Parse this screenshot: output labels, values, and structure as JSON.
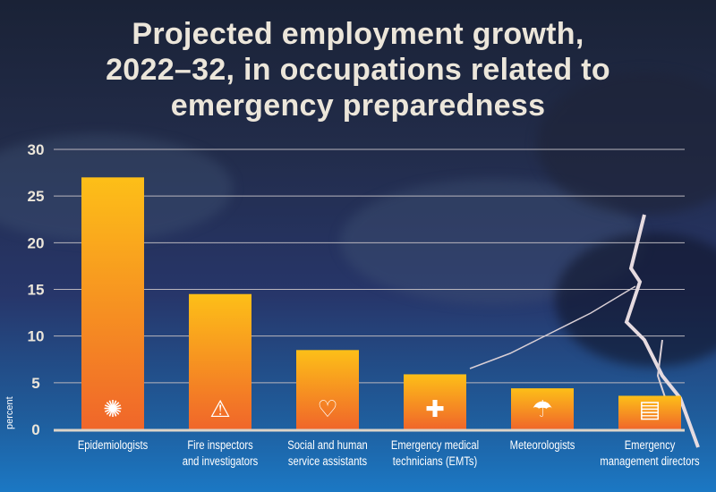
{
  "chart_data": {
    "type": "bar",
    "title": "Projected employment growth, 2022–32, in occupations related to emergency preparedness",
    "title_lines": [
      "Projected employment growth,",
      "2022–32, in occupations related to",
      "emergency preparedness"
    ],
    "ylabel": "percent",
    "xlabel": "",
    "ylim": [
      0,
      30
    ],
    "yticks": [
      0,
      5,
      10,
      15,
      20,
      25,
      30
    ],
    "grid": true,
    "categories": [
      [
        "Epidemiologists"
      ],
      [
        "Fire inspectors",
        "and investigators"
      ],
      [
        "Social and human",
        "service assistants"
      ],
      [
        "Emergency medical",
        "technicians (EMTs)"
      ],
      [
        "Meteorologists"
      ],
      [
        "Emergency",
        "management directors"
      ]
    ],
    "values": [
      27.0,
      14.5,
      8.5,
      5.9,
      4.4,
      3.6
    ],
    "icons": [
      "virus-icon",
      "fire-warning-icon",
      "heart-hand-icon",
      "ambulance-icon",
      "weather-icon",
      "clipboard-icon"
    ],
    "colors": {
      "bar_top": "#fdbf18",
      "bar_bottom": "#f0662a",
      "text": "#ece6da",
      "grid": "#b9b6bd"
    }
  }
}
